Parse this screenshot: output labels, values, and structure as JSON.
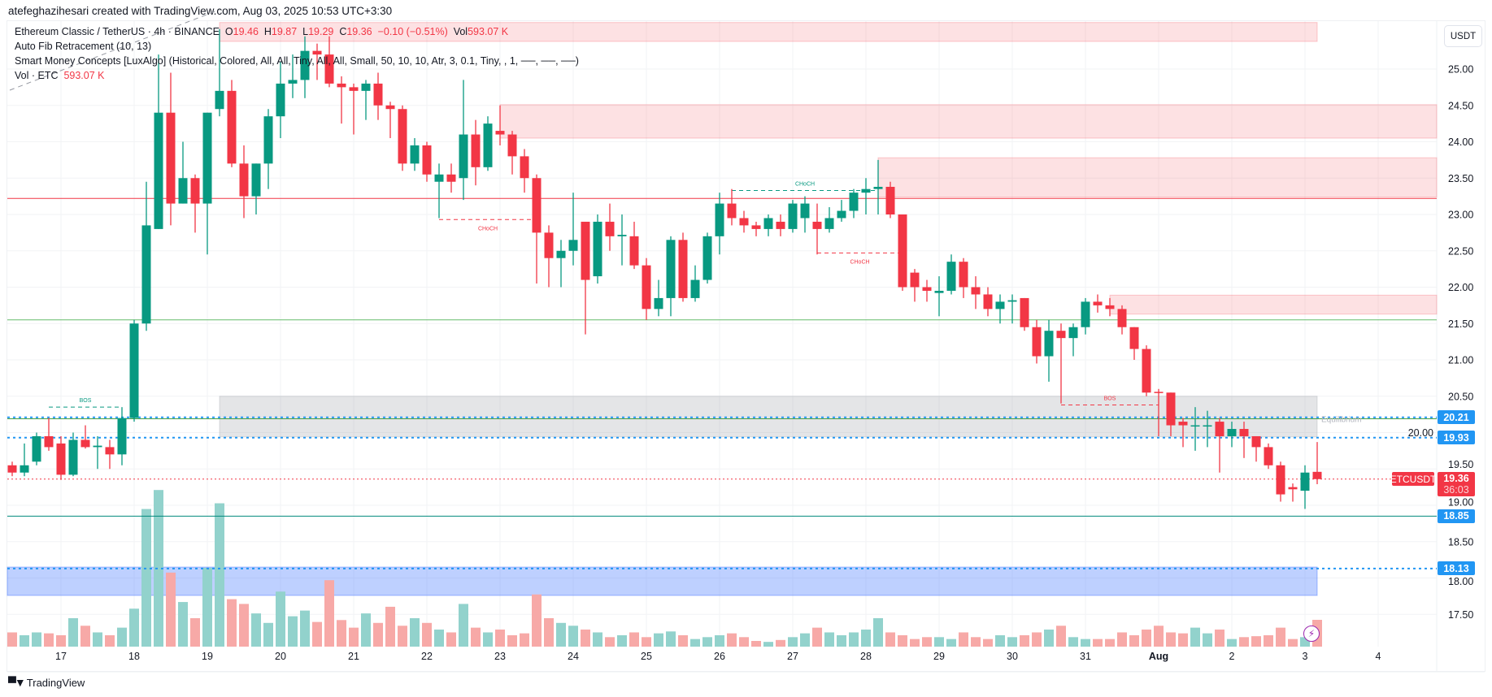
{
  "credit": "atefeghazihesari created with TradingView.com, Aug 03, 2025 10:53 UTC+3:30",
  "legend": {
    "symbol": "Ethereum Classic / TetherUS · 4h · BINANCE",
    "o_label": "O",
    "o": "19.46",
    "h_label": "H",
    "h": "19.87",
    "l_label": "L",
    "l": "19.29",
    "c_label": "C",
    "c": "19.36",
    "change": "−0.10 (−0.51%)",
    "vol_label": "Vol",
    "vol": "593.07 K",
    "fib": "Auto Fib Retracement (10, 13)",
    "smc": "Smart Money Concepts [LuxAlgo] (Historical, Colored, All, All, Tiny, All, All, Small, 50, 10, 10, Atr, 3, 0.1, Tiny, , 1, ──, ──, ──)",
    "vol_series": "Vol · ETC",
    "vol_value": "593.07 K"
  },
  "price_axis": {
    "currency": "USDT",
    "badges": [
      {
        "value": "20.21",
        "price": 20.21
      },
      {
        "value": "19.93",
        "price": 19.93
      },
      {
        "value": "18.85",
        "price": 18.85
      },
      {
        "value": "18.13",
        "price": 18.13
      }
    ],
    "current": {
      "symbol": "ETCUSDT",
      "value": "19.36",
      "countdown": "36:03",
      "price": 19.36
    }
  },
  "footer": {
    "brand": "TradingView"
  },
  "colors": {
    "up": "#089981",
    "down": "#f23645",
    "vol_up": "#92d2cc",
    "vol_down": "#f7a9a7",
    "blue": "#2196f3",
    "zone_red": "#f23645",
    "zone_gray": "#9598a1",
    "zone_blue": "#2962ff"
  },
  "chart_data": {
    "type": "candlestick",
    "title": "Ethereum Classic / TetherUS · 4h · BINANCE",
    "ylim": [
      17.25,
      25.7
    ],
    "yticks": [
      "25.00",
      "24.50",
      "24.00",
      "23.50",
      "23.00",
      "22.50",
      "22.00",
      "21.50",
      "21.00",
      "20.50",
      "20.00",
      "19.50",
      "19.00",
      "18.50",
      "18.00",
      "17.50"
    ],
    "xticks": [
      {
        "label": "17",
        "index": 4
      },
      {
        "label": "18",
        "index": 10
      },
      {
        "label": "19",
        "index": 16
      },
      {
        "label": "20",
        "index": 22
      },
      {
        "label": "21",
        "index": 28
      },
      {
        "label": "22",
        "index": 34
      },
      {
        "label": "23",
        "index": 40
      },
      {
        "label": "24",
        "index": 46
      },
      {
        "label": "25",
        "index": 52
      },
      {
        "label": "26",
        "index": 58
      },
      {
        "label": "27",
        "index": 64
      },
      {
        "label": "28",
        "index": 70
      },
      {
        "label": "29",
        "index": 76
      },
      {
        "label": "30",
        "index": 82
      },
      {
        "label": "31",
        "index": 88
      },
      {
        "label": "Aug",
        "index": 94
      },
      {
        "label": "2",
        "index": 100
      },
      {
        "label": "3",
        "index": 106
      },
      {
        "label": "4",
        "index": 112
      }
    ],
    "candles_ohlc": [
      [
        19.55,
        19.6,
        19.4,
        19.45
      ],
      [
        19.45,
        19.85,
        19.4,
        19.55
      ],
      [
        19.6,
        20.0,
        19.55,
        19.95
      ],
      [
        19.95,
        20.2,
        19.75,
        19.8
      ],
      [
        19.85,
        19.95,
        19.35,
        19.42
      ],
      [
        19.42,
        20.0,
        19.4,
        19.9
      ],
      [
        19.9,
        20.1,
        19.78,
        19.8
      ],
      [
        19.8,
        19.95,
        19.5,
        19.82
      ],
      [
        19.8,
        19.9,
        19.5,
        19.7
      ],
      [
        19.7,
        20.35,
        19.55,
        20.2
      ],
      [
        20.2,
        21.55,
        20.15,
        21.5
      ],
      [
        21.5,
        23.45,
        21.4,
        22.85
      ],
      [
        22.8,
        25.2,
        22.8,
        24.4
      ],
      [
        24.4,
        24.95,
        22.85,
        23.15
      ],
      [
        23.15,
        24.0,
        23.15,
        23.5
      ],
      [
        23.5,
        23.55,
        22.75,
        23.15
      ],
      [
        23.15,
        24.4,
        22.45,
        24.4
      ],
      [
        24.45,
        25.55,
        24.35,
        24.7
      ],
      [
        24.7,
        24.85,
        23.65,
        23.7
      ],
      [
        23.7,
        23.95,
        22.95,
        23.25
      ],
      [
        23.25,
        23.7,
        23.0,
        23.7
      ],
      [
        23.7,
        24.45,
        23.35,
        24.35
      ],
      [
        24.35,
        25.1,
        24.05,
        24.8
      ],
      [
        24.8,
        25.2,
        24.6,
        24.85
      ],
      [
        24.85,
        25.45,
        24.6,
        25.25
      ],
      [
        25.25,
        25.35,
        24.85,
        25.2
      ],
      [
        25.2,
        25.45,
        24.75,
        24.8
      ],
      [
        24.8,
        24.9,
        24.25,
        24.75
      ],
      [
        24.75,
        24.8,
        24.1,
        24.7
      ],
      [
        24.7,
        24.85,
        24.3,
        24.8
      ],
      [
        24.8,
        24.95,
        24.3,
        24.5
      ],
      [
        24.5,
        24.55,
        24.05,
        24.45
      ],
      [
        24.45,
        24.5,
        23.6,
        23.7
      ],
      [
        23.7,
        24.05,
        23.6,
        23.95
      ],
      [
        23.95,
        24.0,
        23.45,
        23.55
      ],
      [
        23.45,
        23.7,
        22.95,
        23.55
      ],
      [
        23.55,
        23.7,
        23.3,
        23.45
      ],
      [
        23.5,
        24.85,
        23.2,
        24.1
      ],
      [
        24.1,
        24.3,
        23.4,
        23.65
      ],
      [
        23.65,
        24.35,
        23.6,
        24.25
      ],
      [
        24.15,
        24.5,
        23.95,
        24.1
      ],
      [
        24.1,
        24.15,
        23.55,
        23.8
      ],
      [
        23.8,
        23.9,
        23.3,
        23.5
      ],
      [
        23.5,
        23.55,
        22.05,
        22.75
      ],
      [
        22.75,
        22.85,
        22.0,
        22.4
      ],
      [
        22.4,
        22.65,
        22.0,
        22.5
      ],
      [
        22.5,
        23.3,
        22.3,
        22.65
      ],
      [
        22.9,
        22.9,
        21.35,
        22.1
      ],
      [
        22.15,
        23.0,
        22.05,
        22.9
      ],
      [
        22.9,
        23.15,
        22.5,
        22.7
      ],
      [
        22.7,
        23.0,
        22.3,
        22.72
      ],
      [
        22.7,
        22.9,
        22.25,
        22.3
      ],
      [
        22.3,
        22.4,
        21.55,
        21.7
      ],
      [
        21.7,
        22.1,
        21.6,
        21.85
      ],
      [
        21.85,
        22.7,
        21.6,
        22.65
      ],
      [
        22.65,
        22.75,
        21.8,
        21.85
      ],
      [
        21.85,
        22.3,
        21.8,
        22.1
      ],
      [
        22.1,
        22.75,
        22.05,
        22.7
      ],
      [
        22.7,
        23.3,
        22.45,
        23.15
      ],
      [
        23.15,
        23.35,
        22.85,
        22.95
      ],
      [
        22.95,
        23.05,
        22.75,
        22.85
      ],
      [
        22.85,
        22.9,
        22.7,
        22.8
      ],
      [
        22.8,
        23.0,
        22.7,
        22.95
      ],
      [
        22.9,
        23.0,
        22.7,
        22.8
      ],
      [
        22.8,
        23.2,
        22.75,
        23.15
      ],
      [
        22.95,
        23.25,
        22.75,
        23.15
      ],
      [
        22.9,
        23.15,
        22.45,
        22.8
      ],
      [
        22.8,
        23.1,
        22.75,
        22.95
      ],
      [
        22.95,
        23.2,
        22.9,
        23.05
      ],
      [
        23.05,
        23.35,
        22.95,
        23.3
      ],
      [
        23.3,
        23.5,
        23.0,
        23.35
      ],
      [
        23.35,
        23.75,
        23.0,
        23.38
      ],
      [
        23.38,
        23.45,
        22.95,
        23.0
      ],
      [
        23.0,
        23.0,
        21.95,
        22.0
      ],
      [
        22.2,
        22.25,
        21.8,
        22.0
      ],
      [
        22.0,
        22.1,
        21.8,
        21.95
      ],
      [
        21.92,
        22.15,
        21.6,
        21.95
      ],
      [
        21.95,
        22.45,
        21.9,
        22.35
      ],
      [
        22.35,
        22.4,
        21.85,
        22.0
      ],
      [
        22.0,
        22.15,
        21.7,
        21.9
      ],
      [
        21.9,
        22.0,
        21.6,
        21.7
      ],
      [
        21.7,
        21.9,
        21.5,
        21.8
      ],
      [
        21.8,
        21.9,
        21.5,
        21.82
      ],
      [
        21.85,
        21.85,
        21.4,
        21.45
      ],
      [
        21.45,
        21.55,
        20.95,
        21.05
      ],
      [
        21.05,
        21.55,
        20.7,
        21.4
      ],
      [
        21.4,
        21.5,
        20.4,
        21.3
      ],
      [
        21.3,
        21.5,
        21.05,
        21.45
      ],
      [
        21.45,
        21.85,
        21.35,
        21.8
      ],
      [
        21.8,
        21.9,
        21.65,
        21.75
      ],
      [
        21.75,
        21.85,
        21.6,
        21.7
      ],
      [
        21.7,
        21.75,
        21.35,
        21.45
      ],
      [
        21.45,
        21.45,
        21.0,
        21.15
      ],
      [
        21.15,
        21.2,
        20.5,
        20.55
      ],
      [
        20.56,
        20.6,
        19.95,
        20.55
      ],
      [
        20.55,
        20.55,
        19.95,
        20.1
      ],
      [
        20.15,
        20.2,
        19.8,
        20.1
      ],
      [
        20.1,
        20.35,
        19.75,
        20.1
      ],
      [
        20.1,
        20.3,
        19.8,
        20.1
      ],
      [
        20.15,
        20.2,
        19.45,
        19.95
      ],
      [
        19.95,
        20.15,
        19.8,
        20.05
      ],
      [
        20.05,
        20.15,
        19.65,
        19.95
      ],
      [
        19.95,
        19.95,
        19.6,
        19.8
      ],
      [
        19.8,
        19.85,
        19.5,
        19.55
      ],
      [
        19.55,
        19.6,
        19.05,
        19.15
      ],
      [
        19.25,
        19.3,
        19.05,
        19.22
      ],
      [
        19.2,
        19.55,
        18.95,
        19.45
      ],
      [
        19.46,
        19.87,
        19.29,
        19.36
      ]
    ],
    "volume_k": [
      315,
      252,
      315,
      294,
      252,
      630,
      462,
      315,
      252,
      420,
      840,
      3045,
      3465,
      1638,
      987,
      630,
      1743,
      3171,
      1050,
      945,
      735,
      525,
      1218,
      672,
      798,
      546,
      1470,
      588,
      420,
      735,
      525,
      882,
      462,
      630,
      525,
      378,
      315,
      945,
      420,
      315,
      378,
      252,
      294,
      1155,
      630,
      525,
      462,
      378,
      315,
      210,
      252,
      315,
      210,
      294,
      336,
      252,
      168,
      210,
      252,
      294,
      210,
      126,
      105,
      147,
      210,
      294,
      420,
      315,
      252,
      315,
      378,
      630,
      315,
      252,
      168,
      210,
      210,
      168,
      315,
      210,
      168,
      252,
      210,
      252,
      315,
      378,
      462,
      210,
      168,
      168,
      168,
      315,
      252,
      378,
      462,
      315,
      294,
      420,
      294,
      378,
      168,
      210,
      231,
      252,
      420,
      168,
      210,
      593.07
    ],
    "zones": [
      {
        "name": "supply-zone-top",
        "type": "red",
        "from_index": 17,
        "to_index": 107,
        "top": 25.64,
        "bottom": 25.38
      },
      {
        "name": "supply-zone-2450",
        "type": "red",
        "from_index": 40,
        "to_index": "right",
        "top": 24.51,
        "bottom": 24.05
      },
      {
        "name": "supply-zone-2375",
        "type": "red",
        "from_index": 71,
        "to_index": "right",
        "top": 23.78,
        "bottom": 23.24
      },
      {
        "name": "supply-zone-2185",
        "type": "red",
        "from_index": 90,
        "to_index": "right",
        "top": 21.89,
        "bottom": 21.63
      },
      {
        "name": "equilibrium-zone",
        "type": "gray",
        "from_index": 17,
        "to_index": 107,
        "top": 20.5,
        "bottom": 19.94
      },
      {
        "name": "demand-zone",
        "type": "blue",
        "from_index": "left",
        "to_index": 107,
        "top": 18.15,
        "bottom": 17.76
      }
    ],
    "hlines": [
      {
        "name": "red-level-line",
        "price": 23.22,
        "color": "#f23645",
        "style": "solid"
      },
      {
        "name": "green-level-line-2155",
        "price": 21.55,
        "color": "#66bb6a",
        "style": "solid"
      },
      {
        "name": "green-level-line-2019",
        "price": 20.19,
        "color": "#43a047",
        "style": "solid"
      },
      {
        "name": "blue-dotted-line-2021",
        "price": 20.21,
        "color": "#2196f3",
        "style": "dotted"
      },
      {
        "name": "blue-dotted-line-1993",
        "price": 19.93,
        "color": "#2196f3",
        "style": "dotted"
      },
      {
        "name": "teal-level-line-1885",
        "price": 18.85,
        "color": "#00897b",
        "style": "solid"
      },
      {
        "name": "blue-dotted-line-1813",
        "price": 18.13,
        "color": "#2196f3",
        "style": "dotted"
      },
      {
        "name": "current-price-line",
        "price": 19.36,
        "color": "#f23645",
        "style": "dotted"
      }
    ],
    "structure_labels": [
      {
        "text": "BOS",
        "color": "#089981",
        "from_index": 3,
        "to_index": 9,
        "price": 20.35
      },
      {
        "text": "CHoCH",
        "color": "#f23645",
        "from_index": 35,
        "to_index": 43,
        "price": 22.93
      },
      {
        "text": "CHoCH",
        "color": "#089981",
        "from_index": 59,
        "to_index": 71,
        "price": 23.33
      },
      {
        "text": "CHoCH",
        "color": "#f23645",
        "from_index": 66,
        "to_index": 73,
        "price": 22.47
      },
      {
        "text": "BOS",
        "color": "#f23645",
        "from_index": 86,
        "to_index": 94,
        "price": 20.38
      }
    ],
    "equilibrium_label": "Equilibrium"
  }
}
